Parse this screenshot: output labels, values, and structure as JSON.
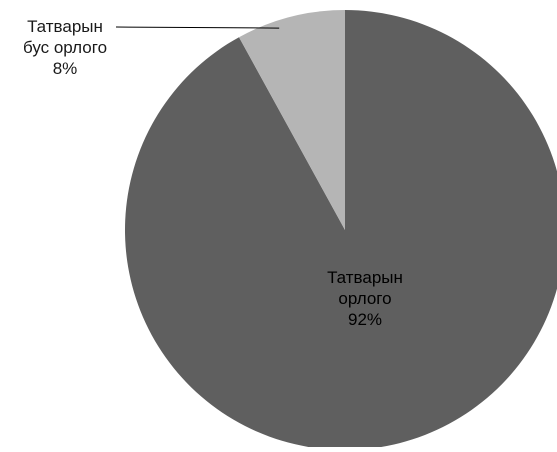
{
  "chart_data": {
    "type": "pie",
    "title": "",
    "slices": [
      {
        "label_lines": [
          "Татварын",
          "орлого"
        ],
        "percent_label": "92%",
        "value": 92,
        "color": "#5f5f5f",
        "label_color": "#000000",
        "label_position": "inside"
      },
      {
        "label_lines": [
          "Татварын",
          "бус орлого"
        ],
        "percent_label": "8%",
        "value": 8,
        "color": "#b5b5b5",
        "label_color": "#1a1a1a",
        "label_position": "outside-top-left"
      }
    ],
    "legend": "none"
  }
}
